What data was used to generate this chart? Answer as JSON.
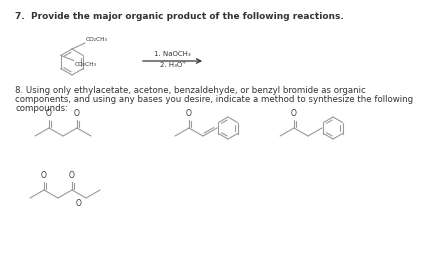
{
  "title7": "7.  Provide the major organic product of the following reactions.",
  "title8_l1": "8. Using only ethylacetate, acetone, benzaldehyde, or benzyl bromide as organic",
  "title8_l2": "components, and using any bases you desire, indicate a method to synthesize the following",
  "title8_l3": "compounds:",
  "reagent1": "1. NaOCH₃",
  "reagent2": "2. H₃O⁺",
  "bg_color": "#ffffff",
  "line_color": "#999999",
  "text_color": "#333333",
  "title_fontsize": 6.5,
  "body_fontsize": 6.2,
  "chem_lw": 0.8
}
